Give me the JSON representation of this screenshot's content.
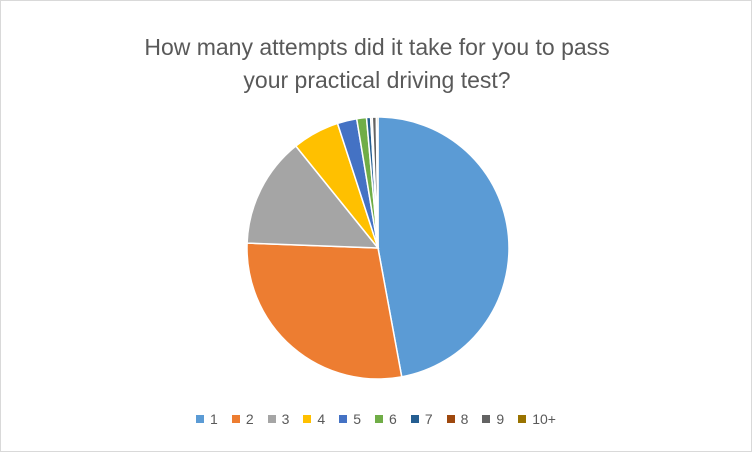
{
  "chart_data": {
    "type": "pie",
    "title": "How many attempts did it take for you to pass your practical driving test?",
    "categories": [
      "1",
      "2",
      "3",
      "4",
      "5",
      "6",
      "7",
      "8",
      "9",
      "10+"
    ],
    "values": [
      47.1,
      28.5,
      13.6,
      5.8,
      2.4,
      1.2,
      0.5,
      0.2,
      0.5,
      0.2
    ],
    "colors": [
      "#5b9bd5",
      "#ed7d31",
      "#a5a5a5",
      "#ffc000",
      "#4472c4",
      "#70ad47",
      "#255e91",
      "#9e480e",
      "#636363",
      "#997300"
    ],
    "legend": "bottom"
  }
}
